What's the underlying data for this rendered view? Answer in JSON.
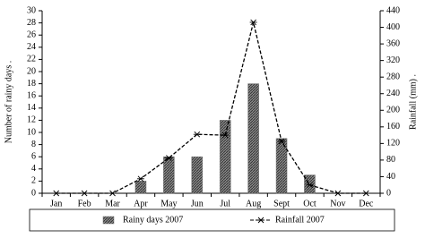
{
  "chart_data": {
    "type": "bar",
    "y_label": "Number of rainy days .",
    "y2_label": "Rainfall (mm) .",
    "categories": [
      "Jan",
      "Feb",
      "Mar",
      "Apr",
      "May",
      "Jun",
      "Jul",
      "Aug",
      "Sept",
      "Oct",
      "Nov",
      "Dec"
    ],
    "series": [
      {
        "name": "Rainy days 2007",
        "type": "bar",
        "color": "#6b6b6b",
        "values": [
          0,
          0,
          0,
          2,
          6,
          6,
          12,
          18,
          9,
          3,
          0,
          0
        ]
      },
      {
        "name": "Rainfall 2007",
        "type": "line",
        "axis": "y2",
        "color": "#000000",
        "values": [
          0,
          0,
          0,
          35,
          85,
          142,
          140,
          412,
          125,
          20,
          0,
          0
        ]
      }
    ],
    "ylim": [
      0,
      30
    ],
    "yticks": [
      0,
      2,
      4,
      6,
      8,
      10,
      12,
      14,
      16,
      18,
      20,
      22,
      24,
      26,
      28,
      30
    ],
    "y2lim": [
      0,
      440
    ],
    "y2ticks": [
      0,
      40,
      80,
      120,
      160,
      200,
      240,
      280,
      320,
      360,
      400,
      440
    ],
    "legend": "bottom"
  }
}
